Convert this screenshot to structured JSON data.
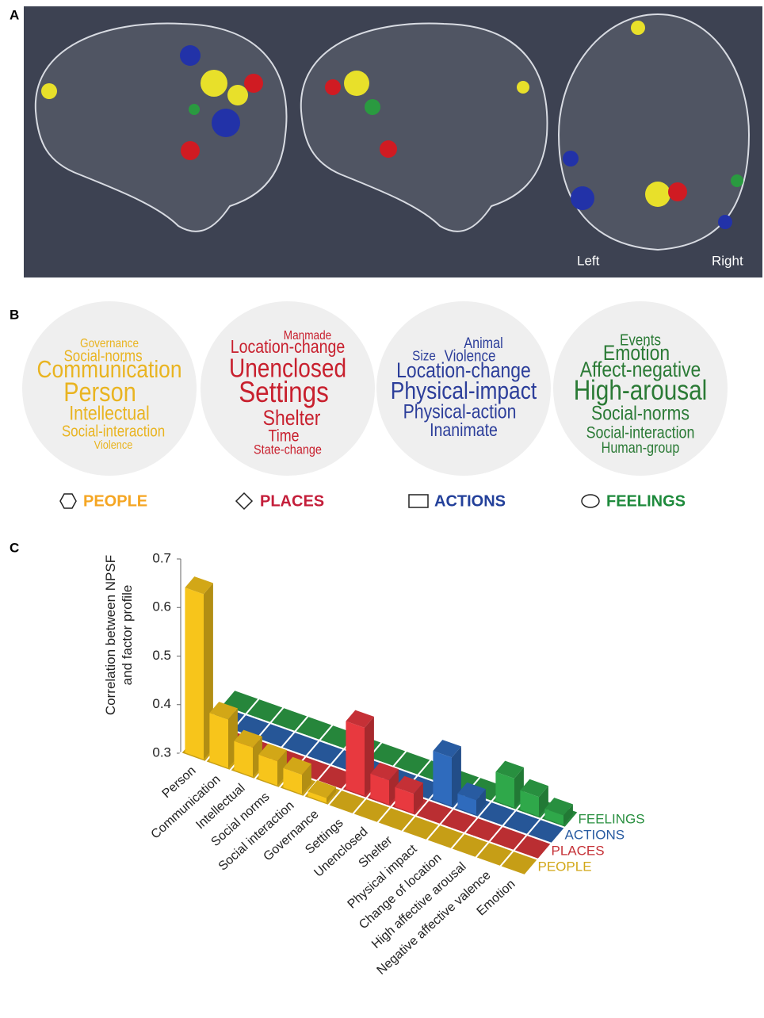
{
  "panel_labels": [
    "A",
    "B",
    "C"
  ],
  "brain_view": {
    "left_label": "Left",
    "right_label": "Right"
  },
  "word_clouds": [
    {
      "label": "PEOPLE",
      "color": "#e9b421",
      "label_color": "#f5a623",
      "words": [
        "Governance",
        "Social-norms",
        "Communication",
        "Person",
        "Intellectual",
        "Social-interaction",
        "Violence"
      ]
    },
    {
      "label": "PLACES",
      "color": "#c8202e",
      "label_color": "#c41e3a",
      "words": [
        "Manmade",
        "Location-change",
        "Unenclosed",
        "Settings",
        "Shelter",
        "Time",
        "State-change"
      ]
    },
    {
      "label": "ACTIONS",
      "color": "#2c3e9a",
      "label_color": "#23409a",
      "words": [
        "Animal",
        "Size",
        "Violence",
        "Location-change",
        "Physical-impact",
        "Physical-action",
        "Inanimate"
      ]
    },
    {
      "label": "FEELINGS",
      "color": "#2a7a35",
      "label_color": "#1e8a3c",
      "words": [
        "Events",
        "Emotion",
        "Affect-negative",
        "High-arousal",
        "Social-norms",
        "Social-interaction",
        "Human-group"
      ]
    }
  ],
  "chart_data": {
    "type": "bar3d",
    "y_label": "Correlation between NPSF and factor profile",
    "categories": [
      "Person",
      "Communication",
      "Intellectual",
      "Social norms",
      "Social interaction",
      "Governance",
      "Settings",
      "Unenclosed",
      "Shelter",
      "Physical impact",
      "Change of location",
      "High affective arousal",
      "Negative affective valence",
      "Emotion"
    ],
    "series": [
      {
        "name": "PEOPLE",
        "color": "#f7c51b",
        "values": [
          0.64,
          0.4,
          0.36,
          0.35,
          0.34,
          0.31,
          null,
          null,
          null,
          null,
          null,
          null,
          null,
          null
        ]
      },
      {
        "name": "PLACES",
        "color": "#e8393f",
        "values": [
          null,
          null,
          null,
          null,
          null,
          null,
          0.44,
          0.35,
          0.34,
          null,
          null,
          null,
          null,
          null
        ]
      },
      {
        "name": "ACTIONS",
        "color": "#2f6bbd",
        "values": [
          null,
          null,
          null,
          null,
          null,
          null,
          null,
          null,
          null,
          0.4,
          0.33,
          null,
          null,
          null
        ]
      },
      {
        "name": "FEELINGS",
        "color": "#2fa84a",
        "values": [
          null,
          null,
          null,
          null,
          null,
          null,
          null,
          null,
          null,
          null,
          null,
          0.36,
          0.34,
          0.32
        ]
      }
    ],
    "ylim": [
      0.3,
      0.7
    ],
    "yticks": [
      0.3,
      0.4,
      0.5,
      0.6,
      0.7
    ]
  }
}
